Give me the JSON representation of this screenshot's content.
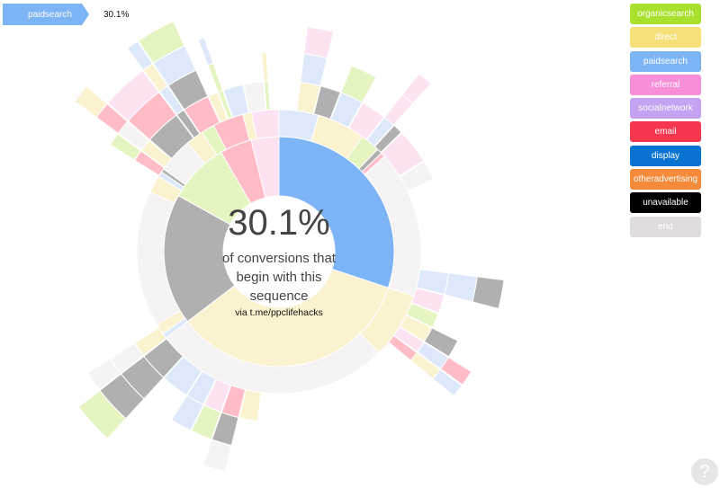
{
  "breadcrumb": {
    "items": [
      {
        "label": "paidsearch"
      }
    ],
    "percentage": "30.1%"
  },
  "legend": {
    "items": [
      {
        "label": "organicsearch",
        "color": "#a8e02e"
      },
      {
        "label": "direct",
        "color": "#f5e07a"
      },
      {
        "label": "paidsearch",
        "color": "#7db4f5"
      },
      {
        "label": "referral",
        "color": "#f78fd8"
      },
      {
        "label": "socialnetwork",
        "color": "#c4a3f2"
      },
      {
        "label": "email",
        "color": "#f5364f"
      },
      {
        "label": "display",
        "color": "#0a73d1"
      },
      {
        "label": "otheradvertising",
        "color": "#f58a3a"
      },
      {
        "label": "unavailable",
        "color": "#000000"
      },
      {
        "label": "end",
        "color": "#e0dcdc"
      }
    ]
  },
  "explanation": {
    "percentage": "30.1%",
    "description": "of conversions that begin with this sequence",
    "via": "via t.me/ppclifehacks"
  },
  "help": {
    "icon": "question-icon",
    "label": "?"
  },
  "chart_data": {
    "type": "sunburst",
    "selected_path": [
      "paidsearch"
    ],
    "selected_share_percent": 30.1,
    "rings": [
      {
        "level": 1,
        "segments": [
          {
            "name": "paidsearch",
            "share": 0.301,
            "color": "#7db4f5"
          },
          {
            "name": "direct",
            "share": 0.345,
            "color": "#fbf2cf"
          },
          {
            "name": "unavailable",
            "share": 0.185,
            "color": "#b0b0b0"
          },
          {
            "name": "organicsearch",
            "share": 0.085,
            "color": "#e4f5c2"
          },
          {
            "name": "email",
            "share": 0.045,
            "color": "#ffbcc6"
          },
          {
            "name": "referral",
            "share": 0.039,
            "color": "#fde2f1"
          }
        ]
      },
      {
        "level": 2,
        "segments": [
          {
            "name": "paidsearch",
            "share": 0.045,
            "color": "#dde9fa"
          },
          {
            "name": "direct",
            "share": 0.055,
            "color": "#fbf2cf"
          },
          {
            "name": "organicsearch",
            "share": 0.022,
            "color": "#e4f5c2"
          },
          {
            "name": "unavailable",
            "share": 0.006,
            "color": "#b0b0b0"
          },
          {
            "name": "email",
            "share": 0.005,
            "color": "#ffbcc6"
          },
          {
            "name": "end",
            "share": 0.168,
            "color": "#f5f3f3"
          },
          {
            "name": "direct",
            "share": 0.075,
            "color": "#fbf2cf"
          },
          {
            "name": "end",
            "share": 0.27,
            "color": "#f5f3f3"
          },
          {
            "name": "paidsearch",
            "share": 0.006,
            "color": "#dde9fa"
          },
          {
            "name": "direct",
            "share": 0.012,
            "color": "#fbf2cf"
          },
          {
            "name": "end",
            "share": 0.155,
            "color": "#f5f3f3"
          },
          {
            "name": "direct",
            "share": 0.02,
            "color": "#fbf2cf"
          },
          {
            "name": "paidsearch",
            "share": 0.006,
            "color": "#dde9fa"
          },
          {
            "name": "unavailable",
            "share": 0.004,
            "color": "#b0b0b0"
          },
          {
            "name": "end",
            "share": 0.04,
            "color": "#f5f3f3"
          },
          {
            "name": "direct",
            "share": 0.02,
            "color": "#fbf2cf"
          },
          {
            "name": "organicsearch",
            "share": 0.015,
            "color": "#e4f5c2"
          },
          {
            "name": "email",
            "share": 0.035,
            "color": "#ffbcc6"
          },
          {
            "name": "direct",
            "share": 0.01,
            "color": "#fbf2cf"
          },
          {
            "name": "referral",
            "share": 0.031,
            "color": "#fde2f1"
          }
        ]
      }
    ]
  }
}
